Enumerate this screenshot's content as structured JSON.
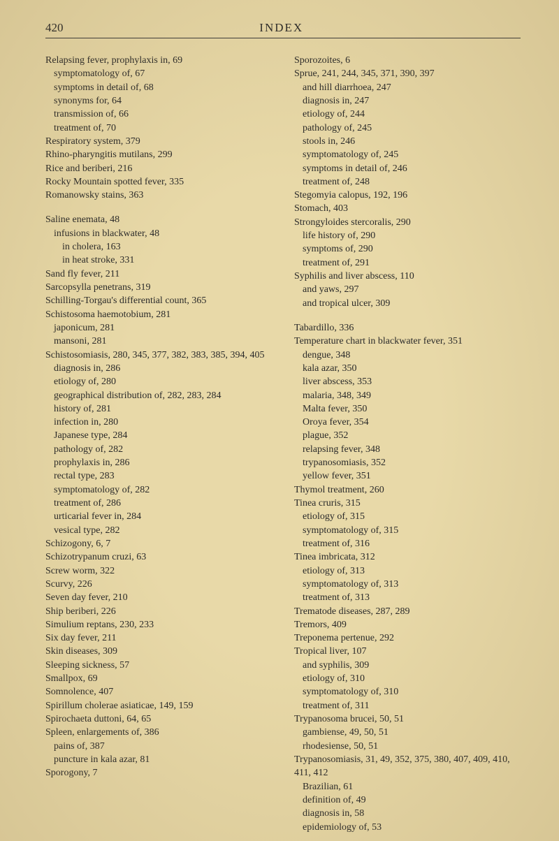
{
  "header": {
    "pageNumber": "420",
    "title": "INDEX"
  },
  "leftColumn": [
    {
      "level": 0,
      "text": "Relapsing fever, prophylaxis in, 69"
    },
    {
      "level": 1,
      "text": "symptomatology of, 67"
    },
    {
      "level": 1,
      "text": "symptoms in detail of, 68"
    },
    {
      "level": 1,
      "text": "synonyms for, 64"
    },
    {
      "level": 1,
      "text": "transmission of, 66"
    },
    {
      "level": 1,
      "text": "treatment of, 70"
    },
    {
      "level": 0,
      "text": "Respiratory system, 379"
    },
    {
      "level": 0,
      "text": "Rhino-pharyngitis mutilans, 299"
    },
    {
      "level": 0,
      "text": "Rice and beriberi, 216"
    },
    {
      "level": 0,
      "text": "Rocky Mountain spotted fever, 335"
    },
    {
      "level": 0,
      "text": "Romanowsky stains, 363"
    },
    {
      "type": "spacer"
    },
    {
      "level": 0,
      "text": "Saline enemata, 48"
    },
    {
      "level": 1,
      "text": "infusions in blackwater, 48"
    },
    {
      "level": 2,
      "text": "in cholera, 163"
    },
    {
      "level": 2,
      "text": "in heat stroke, 331"
    },
    {
      "level": 0,
      "text": "Sand fly fever, 211"
    },
    {
      "level": 0,
      "text": "Sarcopsylla penetrans, 319"
    },
    {
      "level": 0,
      "text": "Schilling-Torgau's differential count, 365"
    },
    {
      "level": 0,
      "text": "Schistosoma haemotobium, 281"
    },
    {
      "level": 1,
      "text": "japonicum, 281"
    },
    {
      "level": 1,
      "text": "mansoni, 281"
    },
    {
      "level": 0,
      "text": "Schistosomiasis, 280, 345, 377, 382, 383, 385, 394, 405"
    },
    {
      "level": 1,
      "text": "diagnosis in, 286"
    },
    {
      "level": 1,
      "text": "etiology of, 280"
    },
    {
      "level": 1,
      "text": "geographical distribution of, 282, 283, 284"
    },
    {
      "level": 1,
      "text": "history of, 281"
    },
    {
      "level": 1,
      "text": "infection in, 280"
    },
    {
      "level": 1,
      "text": "Japanese type, 284"
    },
    {
      "level": 1,
      "text": "pathology of, 282"
    },
    {
      "level": 1,
      "text": "prophylaxis in, 286"
    },
    {
      "level": 1,
      "text": "rectal type, 283"
    },
    {
      "level": 1,
      "text": "symptomatology of, 282"
    },
    {
      "level": 1,
      "text": "treatment of, 286"
    },
    {
      "level": 1,
      "text": "urticarial fever in, 284"
    },
    {
      "level": 1,
      "text": "vesical type, 282"
    },
    {
      "level": 0,
      "text": "Schizogony, 6, 7"
    },
    {
      "level": 0,
      "text": "Schizotrypanum cruzi, 63"
    },
    {
      "level": 0,
      "text": "Screw worm, 322"
    },
    {
      "level": 0,
      "text": "Scurvy, 226"
    },
    {
      "level": 0,
      "text": "Seven day fever, 210"
    },
    {
      "level": 0,
      "text": "Ship beriberi, 226"
    },
    {
      "level": 0,
      "text": "Simulium reptans, 230, 233"
    },
    {
      "level": 0,
      "text": "Six day fever, 211"
    },
    {
      "level": 0,
      "text": "Skin diseases, 309"
    },
    {
      "level": 0,
      "text": "Sleeping sickness, 57"
    },
    {
      "level": 0,
      "text": "Smallpox, 69"
    },
    {
      "level": 0,
      "text": "Somnolence, 407"
    },
    {
      "level": 0,
      "text": "Spirillum cholerae asiaticae, 149, 159"
    },
    {
      "level": 0,
      "text": "Spirochaeta duttoni, 64, 65"
    },
    {
      "level": 0,
      "text": "Spleen, enlargements of, 386"
    },
    {
      "level": 1,
      "text": "pains of, 387"
    },
    {
      "level": 1,
      "text": "puncture in kala azar, 81"
    },
    {
      "level": 0,
      "text": "Sporogony, 7"
    }
  ],
  "rightColumn": [
    {
      "level": 0,
      "text": "Sporozoites, 6"
    },
    {
      "level": 0,
      "text": "Sprue, 241, 244, 345, 371, 390, 397"
    },
    {
      "level": 1,
      "text": "and hill diarrhoea, 247"
    },
    {
      "level": 1,
      "text": "diagnosis in, 247"
    },
    {
      "level": 1,
      "text": "etiology of, 244"
    },
    {
      "level": 1,
      "text": "pathology of, 245"
    },
    {
      "level": 1,
      "text": "stools in, 246"
    },
    {
      "level": 1,
      "text": "symptomatology of, 245"
    },
    {
      "level": 1,
      "text": "symptoms in detail of, 246"
    },
    {
      "level": 1,
      "text": "treatment of, 248"
    },
    {
      "level": 0,
      "text": "Stegomyia calopus, 192, 196"
    },
    {
      "level": 0,
      "text": "Stomach, 403"
    },
    {
      "level": 0,
      "text": "Strongyloides stercoralis, 290"
    },
    {
      "level": 1,
      "text": "life history of, 290"
    },
    {
      "level": 1,
      "text": "symptoms of, 290"
    },
    {
      "level": 1,
      "text": "treatment of, 291"
    },
    {
      "level": 0,
      "text": "Syphilis and liver abscess, 110"
    },
    {
      "level": 1,
      "text": "and yaws, 297"
    },
    {
      "level": 1,
      "text": "and tropical ulcer, 309"
    },
    {
      "type": "spacer"
    },
    {
      "level": 0,
      "text": "Tabardillo, 336"
    },
    {
      "level": 0,
      "text": "Temperature chart in blackwater fever, 351"
    },
    {
      "level": 1,
      "text": "dengue, 348"
    },
    {
      "level": 1,
      "text": "kala azar, 350"
    },
    {
      "level": 1,
      "text": "liver abscess, 353"
    },
    {
      "level": 1,
      "text": "malaria, 348, 349"
    },
    {
      "level": 1,
      "text": "Malta fever, 350"
    },
    {
      "level": 1,
      "text": "Oroya fever, 354"
    },
    {
      "level": 1,
      "text": "plague, 352"
    },
    {
      "level": 1,
      "text": "relapsing fever, 348"
    },
    {
      "level": 1,
      "text": "trypanosomiasis, 352"
    },
    {
      "level": 1,
      "text": "yellow fever, 351"
    },
    {
      "level": 0,
      "text": "Thymol treatment, 260"
    },
    {
      "level": 0,
      "text": "Tinea cruris, 315"
    },
    {
      "level": 1,
      "text": "etiology of, 315"
    },
    {
      "level": 1,
      "text": "symptomatology of, 315"
    },
    {
      "level": 1,
      "text": "treatment of, 316"
    },
    {
      "level": 0,
      "text": "Tinea imbricata, 312"
    },
    {
      "level": 1,
      "text": "etiology of, 313"
    },
    {
      "level": 1,
      "text": "symptomatology of, 313"
    },
    {
      "level": 1,
      "text": "treatment of, 313"
    },
    {
      "level": 0,
      "text": "Trematode diseases, 287, 289"
    },
    {
      "level": 0,
      "text": "Tremors, 409"
    },
    {
      "level": 0,
      "text": "Treponema pertenue, 292"
    },
    {
      "level": 0,
      "text": "Tropical liver, 107"
    },
    {
      "level": 1,
      "text": "and syphilis, 309"
    },
    {
      "level": 1,
      "text": "etiology of, 310"
    },
    {
      "level": 1,
      "text": "symptomatology of, 310"
    },
    {
      "level": 1,
      "text": "treatment of, 311"
    },
    {
      "level": 0,
      "text": "Trypanosoma brucei, 50, 51"
    },
    {
      "level": 1,
      "text": "gambiense, 49, 50, 51"
    },
    {
      "level": 1,
      "text": "rhodesiense, 50, 51"
    },
    {
      "level": 0,
      "text": "Trypanosomiasis, 31, 49, 352, 375, 380, 407, 409, 410, 411, 412"
    },
    {
      "level": 1,
      "text": "Brazilian, 61"
    },
    {
      "level": 1,
      "text": "definition of, 49"
    },
    {
      "level": 1,
      "text": "diagnosis in, 58"
    },
    {
      "level": 1,
      "text": "epidemiology of, 53"
    }
  ]
}
